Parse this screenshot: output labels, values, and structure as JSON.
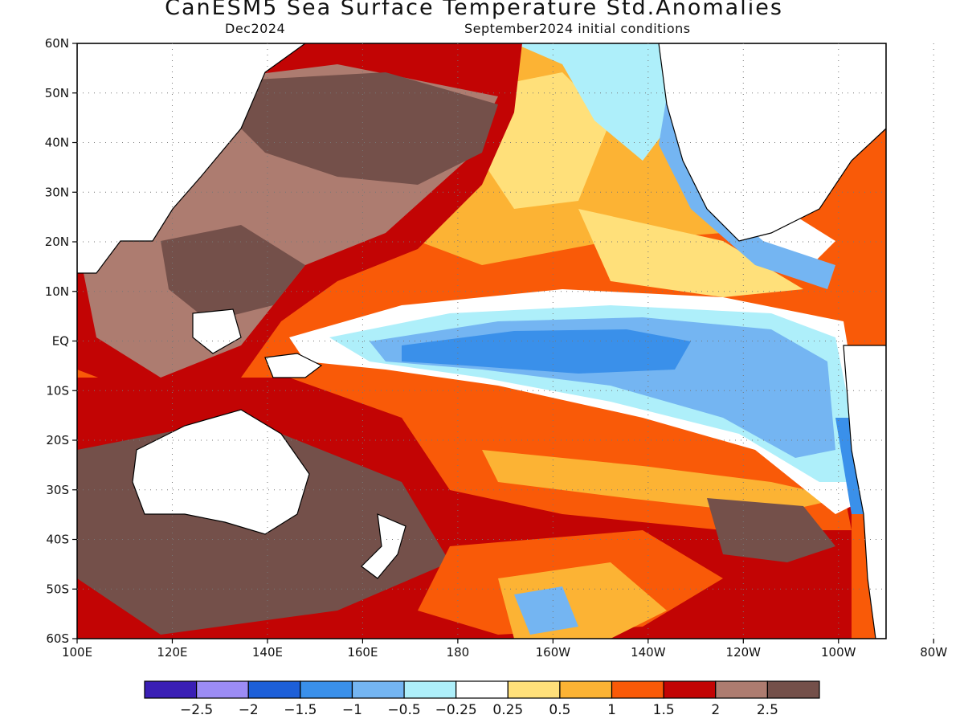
{
  "title": "CanESM5 Sea Surface Temperature Std.Anomalies",
  "subtitle_left": "Dec2024",
  "subtitle_right": "September2024 initial conditions",
  "map": {
    "lat_labels": [
      "60N",
      "50N",
      "40N",
      "30N",
      "20N",
      "10N",
      "EQ",
      "10S",
      "20S",
      "30S",
      "40S",
      "50S",
      "60S"
    ],
    "lon_labels": [
      "100E",
      "120E",
      "140E",
      "160E",
      "180",
      "160W",
      "140W",
      "120W",
      "100W",
      "80W"
    ]
  },
  "colorbar": {
    "colors": [
      "#3a1fb5",
      "#9c8cf5",
      "#1d5fd8",
      "#3a90ea",
      "#74b5f2",
      "#aeeffa",
      "#ffffff",
      "#ffe07a",
      "#fcb334",
      "#f95a08",
      "#c20404",
      "#ad7c70",
      "#74504a"
    ],
    "labels": [
      "−2.5",
      "−2",
      "−1.5",
      "−1",
      "−0.5",
      "−0.25",
      "0.25",
      "0.5",
      "1",
      "1.5",
      "2",
      "2.5"
    ]
  },
  "colors": {
    "land": "#ffffff",
    "ocean_neutral": "#ffffff"
  }
}
